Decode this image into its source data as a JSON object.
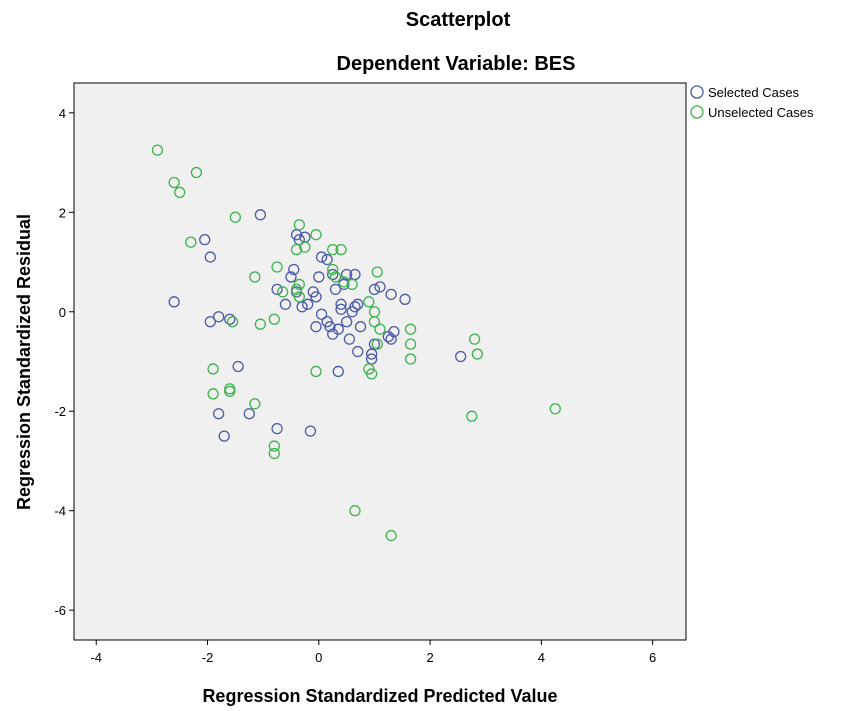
{
  "chart_data": {
    "type": "scatter",
    "title": "Scatterplot",
    "subtitle": "Dependent Variable: BES",
    "xlabel": "Regression Standardized Predicted Value",
    "ylabel": "Regression Standardized Residual",
    "xlim": [
      -4.4,
      6.6
    ],
    "ylim": [
      -6.6,
      4.6
    ],
    "xticks": [
      -4,
      -2,
      0,
      2,
      4,
      6
    ],
    "xtick_labels": [
      "-4",
      "-2",
      "0",
      "2",
      "4",
      "6"
    ],
    "yticks": [
      -6,
      -4,
      -2,
      0,
      2,
      4
    ],
    "ytick_labels": [
      "-6",
      "-4",
      "-2",
      "0",
      "2",
      "4"
    ],
    "grid": false,
    "background": "#f0f0f0",
    "legend": "outside top-right",
    "marker": "open-circle",
    "series": [
      {
        "name": "Selected Cases",
        "color": "#4b5aa8",
        "points": [
          [
            -1.05,
            1.95
          ],
          [
            -2.05,
            1.45
          ],
          [
            -1.95,
            1.1
          ],
          [
            -2.6,
            0.2
          ],
          [
            -1.95,
            -0.2
          ],
          [
            -1.8,
            -0.1
          ],
          [
            -1.6,
            -0.15
          ],
          [
            -1.45,
            -1.1
          ],
          [
            -1.8,
            -2.05
          ],
          [
            -1.7,
            -2.5
          ],
          [
            -1.25,
            -2.05
          ],
          [
            -0.75,
            -2.35
          ],
          [
            -0.15,
            -2.4
          ],
          [
            -0.4,
            1.55
          ],
          [
            -0.35,
            1.45
          ],
          [
            -0.25,
            1.5
          ],
          [
            -0.45,
            0.85
          ],
          [
            -0.5,
            0.7
          ],
          [
            -0.75,
            0.45
          ],
          [
            -0.6,
            0.15
          ],
          [
            -0.4,
            0.4
          ],
          [
            -0.3,
            0.1
          ],
          [
            -0.2,
            0.15
          ],
          [
            -0.1,
            0.4
          ],
          [
            -0.05,
            0.3
          ],
          [
            0.0,
            0.7
          ],
          [
            0.05,
            1.1
          ],
          [
            0.15,
            1.05
          ],
          [
            0.25,
            0.75
          ],
          [
            0.3,
            0.45
          ],
          [
            0.4,
            0.15
          ],
          [
            0.4,
            0.05
          ],
          [
            0.05,
            -0.05
          ],
          [
            0.15,
            -0.2
          ],
          [
            -0.05,
            -0.3
          ],
          [
            0.2,
            -0.3
          ],
          [
            0.25,
            -0.45
          ],
          [
            0.35,
            -0.35
          ],
          [
            0.5,
            -0.2
          ],
          [
            0.55,
            -0.55
          ],
          [
            0.6,
            0.0
          ],
          [
            0.65,
            0.1
          ],
          [
            0.7,
            0.15
          ],
          [
            0.75,
            -0.3
          ],
          [
            0.7,
            -0.8
          ],
          [
            0.95,
            -0.85
          ],
          [
            0.95,
            -0.95
          ],
          [
            1.0,
            -0.65
          ],
          [
            0.65,
            0.75
          ],
          [
            1.0,
            0.45
          ],
          [
            1.1,
            0.5
          ],
          [
            1.3,
            0.35
          ],
          [
            1.55,
            0.25
          ],
          [
            1.25,
            -0.5
          ],
          [
            1.3,
            -0.55
          ],
          [
            1.35,
            -0.4
          ],
          [
            0.35,
            -1.2
          ],
          [
            2.55,
            -0.9
          ],
          [
            0.5,
            0.75
          ],
          [
            0.45,
            0.55
          ]
        ]
      },
      {
        "name": "Unselected Cases",
        "color": "#3cb44b",
        "points": [
          [
            -2.9,
            3.25
          ],
          [
            -2.6,
            2.6
          ],
          [
            -2.5,
            2.4
          ],
          [
            -2.2,
            2.8
          ],
          [
            -2.3,
            1.4
          ],
          [
            -1.5,
            1.9
          ],
          [
            -1.15,
            0.7
          ],
          [
            -0.75,
            0.9
          ],
          [
            -0.35,
            1.75
          ],
          [
            -0.05,
            1.55
          ],
          [
            -0.25,
            1.3
          ],
          [
            -0.4,
            1.25
          ],
          [
            0.25,
            1.25
          ],
          [
            0.4,
            1.25
          ],
          [
            -0.35,
            0.55
          ],
          [
            -0.4,
            0.45
          ],
          [
            -0.65,
            0.4
          ],
          [
            -0.35,
            0.3
          ],
          [
            0.25,
            0.85
          ],
          [
            0.3,
            0.7
          ],
          [
            0.45,
            0.6
          ],
          [
            0.6,
            0.55
          ],
          [
            1.05,
            0.8
          ],
          [
            0.9,
            0.2
          ],
          [
            1.0,
            0.0
          ],
          [
            1.0,
            -0.2
          ],
          [
            1.1,
            -0.35
          ],
          [
            1.05,
            -0.65
          ],
          [
            1.65,
            -0.35
          ],
          [
            1.65,
            -0.65
          ],
          [
            1.65,
            -0.95
          ],
          [
            2.8,
            -0.55
          ],
          [
            2.85,
            -0.85
          ],
          [
            -0.8,
            -0.15
          ],
          [
            -1.05,
            -0.25
          ],
          [
            -1.55,
            -0.2
          ],
          [
            -1.9,
            -1.15
          ],
          [
            -1.6,
            -1.55
          ],
          [
            -1.6,
            -1.6
          ],
          [
            -1.9,
            -1.65
          ],
          [
            -1.15,
            -1.85
          ],
          [
            -0.8,
            -2.7
          ],
          [
            -0.8,
            -2.85
          ],
          [
            -0.05,
            -1.2
          ],
          [
            0.9,
            -1.15
          ],
          [
            0.95,
            -1.25
          ],
          [
            2.75,
            -2.1
          ],
          [
            4.25,
            -1.95
          ],
          [
            0.65,
            -4.0
          ],
          [
            1.3,
            -4.5
          ]
        ]
      }
    ]
  }
}
